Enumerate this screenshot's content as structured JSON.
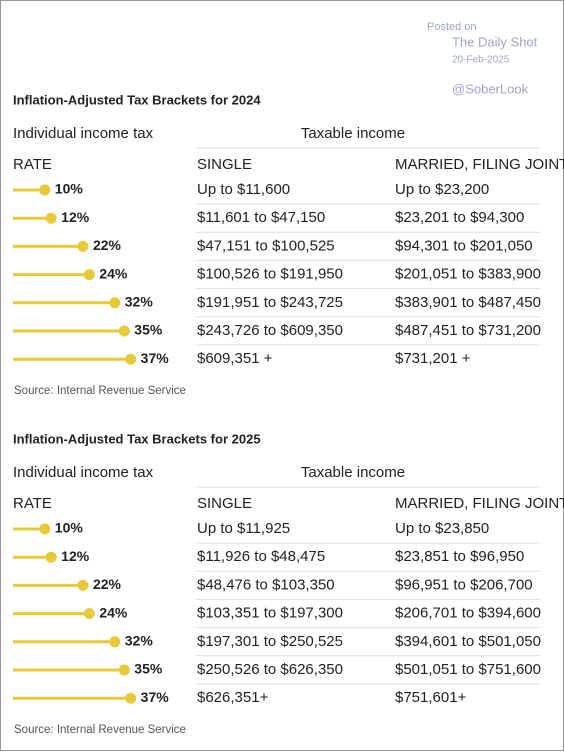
{
  "watermark": {
    "posted": "Posted on",
    "source": "The Daily Shot",
    "date": "20-Feb-2025",
    "handle": "@SoberLook"
  },
  "tables": [
    {
      "title": "Inflation-Adjusted Tax Brackets for 2024",
      "group_label": "Individual income tax",
      "column_group": "Taxable income",
      "columns": [
        "RATE",
        "SINGLE",
        "MARRIED, FILING JOINTLY"
      ],
      "rows": [
        {
          "rate": {
            "value": 10,
            "label": "10%"
          },
          "single": "Up to $11,600",
          "married": "Up to $23,200"
        },
        {
          "rate": {
            "value": 12,
            "label": "12%"
          },
          "single": "$11,601 to $47,150",
          "married": "$23,201 to $94,300"
        },
        {
          "rate": {
            "value": 22,
            "label": "22%"
          },
          "single": "$47,151 to $100,525",
          "married": "$94,301 to $201,050"
        },
        {
          "rate": {
            "value": 24,
            "label": "24%"
          },
          "single": "$100,526 to $191,950",
          "married": "$201,051 to $383,900"
        },
        {
          "rate": {
            "value": 32,
            "label": "32%"
          },
          "single": "$191,951 to $243,725",
          "married": "$383,901 to $487,450"
        },
        {
          "rate": {
            "value": 35,
            "label": "35%"
          },
          "single": "$243,726 to $609,350",
          "married": "$487,451 to $731,200"
        },
        {
          "rate": {
            "value": 37,
            "label": "37%"
          },
          "single": "$609,351 +",
          "married": "$731,201 +"
        }
      ],
      "source": "Source: Internal Revenue Service"
    },
    {
      "title": "Inflation-Adjusted Tax Brackets for 2025",
      "group_label": "Individual income tax",
      "column_group": "Taxable income",
      "columns": [
        "RATE",
        "SINGLE",
        "MARRIED, FILING JOINTLY"
      ],
      "rows": [
        {
          "rate": {
            "value": 10,
            "label": "10%"
          },
          "single": "Up to $11,925",
          "married": "Up to $23,850"
        },
        {
          "rate": {
            "value": 12,
            "label": "12%"
          },
          "single": "$11,926 to $48,475",
          "married": "$23,851 to $96,950"
        },
        {
          "rate": {
            "value": 22,
            "label": "22%"
          },
          "single": "$48,476 to $103,350",
          "married": "$96,951 to $206,700"
        },
        {
          "rate": {
            "value": 24,
            "label": "24%"
          },
          "single": "$103,351 to $197,300",
          "married": "$206,701 to $394,600"
        },
        {
          "rate": {
            "value": 32,
            "label": "32%"
          },
          "single": "$197,301 to $250,525",
          "married": "$394,601 to $501,050"
        },
        {
          "rate": {
            "value": 35,
            "label": "35%"
          },
          "single": "$250,526 to $626,350",
          "married": "$501,051 to $751,600"
        },
        {
          "rate": {
            "value": 37,
            "label": "37%"
          },
          "single": "$626,351+",
          "married": "$751,601+"
        }
      ],
      "source": "Source: Internal Revenue Service"
    }
  ]
}
